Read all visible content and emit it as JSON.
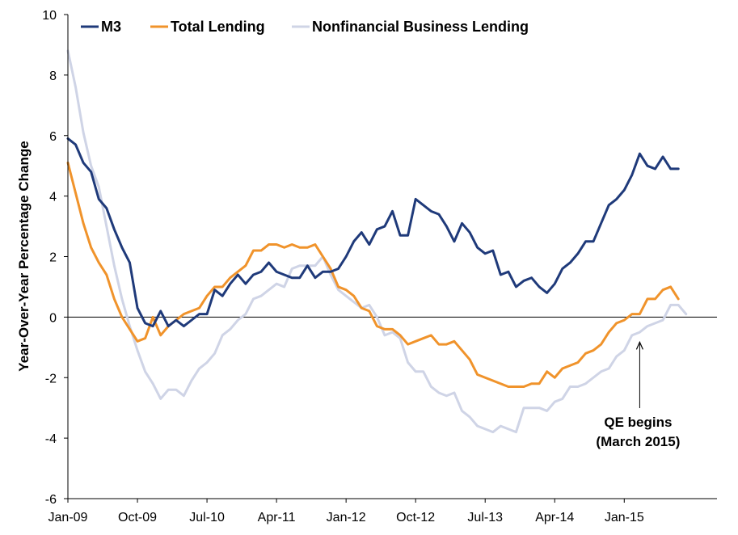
{
  "chart_data": {
    "type": "line",
    "ylabel": "Year-Over-Year Percentage Change",
    "ylim": [
      -6,
      10
    ],
    "yticks": [
      -6,
      -4,
      -2,
      0,
      2,
      4,
      6,
      8,
      10
    ],
    "xlim": [
      "2009-01",
      "2015-12"
    ],
    "xticks": [
      {
        "date": "2009-01",
        "label": "Jan-09"
      },
      {
        "date": "2009-10",
        "label": "Oct-09"
      },
      {
        "date": "2010-07",
        "label": "Jul-10"
      },
      {
        "date": "2011-04",
        "label": "Apr-11"
      },
      {
        "date": "2012-01",
        "label": "Jan-12"
      },
      {
        "date": "2012-10",
        "label": "Oct-12"
      },
      {
        "date": "2013-07",
        "label": "Jul-13"
      },
      {
        "date": "2014-04",
        "label": "Apr-14"
      },
      {
        "date": "2015-01",
        "label": "Jan-15"
      }
    ],
    "grid": false,
    "legend": "top-left",
    "start": "2009-01",
    "frequency": "monthly",
    "series": [
      {
        "name": "M3",
        "color": "#1f3a7a",
        "values": [
          5.9,
          5.7,
          5.1,
          4.8,
          3.9,
          3.6,
          2.9,
          2.3,
          1.8,
          0.3,
          -0.2,
          -0.3,
          0.2,
          -0.3,
          -0.1,
          -0.3,
          -0.1,
          0.1,
          0.1,
          0.9,
          0.7,
          1.1,
          1.4,
          1.1,
          1.4,
          1.5,
          1.8,
          1.5,
          1.4,
          1.3,
          1.3,
          1.7,
          1.3,
          1.5,
          1.5,
          1.6,
          2.0,
          2.5,
          2.8,
          2.4,
          2.9,
          3.0,
          3.5,
          2.7,
          2.7,
          3.9,
          3.7,
          3.5,
          3.4,
          3.0,
          2.5,
          3.1,
          2.8,
          2.3,
          2.1,
          2.2,
          1.4,
          1.5,
          1.0,
          1.2,
          1.3,
          1.0,
          0.8,
          1.1,
          1.6,
          1.8,
          2.1,
          2.5,
          2.5,
          3.1,
          3.7,
          3.9,
          4.2,
          4.7,
          5.4,
          5.0,
          4.9,
          5.3,
          4.9,
          4.9
        ]
      },
      {
        "name": "Total Lending",
        "color": "#f0932b",
        "values": [
          5.1,
          4.1,
          3.1,
          2.3,
          1.8,
          1.4,
          0.6,
          0.0,
          -0.4,
          -0.8,
          -0.7,
          0.0,
          -0.6,
          -0.3,
          -0.1,
          0.1,
          0.2,
          0.3,
          0.7,
          1.0,
          1.0,
          1.3,
          1.5,
          1.7,
          2.2,
          2.2,
          2.4,
          2.4,
          2.3,
          2.4,
          2.3,
          2.3,
          2.4,
          2.0,
          1.6,
          1.0,
          0.9,
          0.7,
          0.3,
          0.2,
          -0.3,
          -0.4,
          -0.4,
          -0.6,
          -0.9,
          -0.8,
          -0.7,
          -0.6,
          -0.9,
          -0.9,
          -0.8,
          -1.1,
          -1.4,
          -1.9,
          -2.0,
          -2.1,
          -2.2,
          -2.3,
          -2.3,
          -2.3,
          -2.2,
          -2.2,
          -1.8,
          -2.0,
          -1.7,
          -1.6,
          -1.5,
          -1.2,
          -1.1,
          -0.9,
          -0.5,
          -0.2,
          -0.1,
          0.1,
          0.1,
          0.6,
          0.6,
          0.9,
          1.0,
          0.6
        ]
      },
      {
        "name": "Nonfinancial Business Lending",
        "color": "#cfd4e6",
        "values": [
          8.8,
          7.6,
          6.1,
          5.0,
          4.3,
          3.0,
          1.7,
          0.6,
          -0.3,
          -1.1,
          -1.8,
          -2.2,
          -2.7,
          -2.4,
          -2.4,
          -2.6,
          -2.1,
          -1.7,
          -1.5,
          -1.2,
          -0.6,
          -0.4,
          -0.1,
          0.1,
          0.6,
          0.7,
          0.9,
          1.1,
          1.0,
          1.6,
          1.7,
          1.7,
          1.7,
          2.0,
          1.4,
          0.9,
          0.7,
          0.5,
          0.3,
          0.4,
          0.0,
          -0.6,
          -0.5,
          -0.7,
          -1.5,
          -1.8,
          -1.8,
          -2.3,
          -2.5,
          -2.6,
          -2.5,
          -3.1,
          -3.3,
          -3.6,
          -3.7,
          -3.8,
          -3.6,
          -3.7,
          -3.8,
          -3.0,
          -3.0,
          -3.0,
          -3.1,
          -2.8,
          -2.7,
          -2.3,
          -2.3,
          -2.2,
          -2.0,
          -1.8,
          -1.7,
          -1.3,
          -1.1,
          -0.6,
          -0.5,
          -0.3,
          -0.2,
          -0.1,
          0.4,
          0.4,
          0.1
        ]
      }
    ],
    "annotations": [
      {
        "lines": [
          "QE begins",
          "(March 2015)"
        ],
        "arrow_date": "2015-03",
        "arrow_value": -0.8
      }
    ]
  }
}
